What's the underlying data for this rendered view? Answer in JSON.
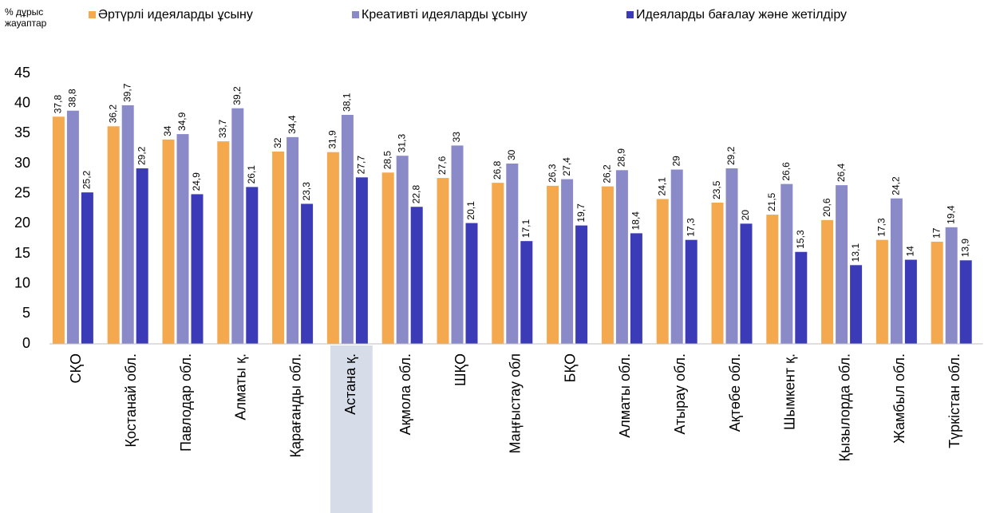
{
  "chart_data": {
    "type": "bar",
    "y_label": "% дұрыс жауаптар",
    "categories": [
      "СҚО",
      "Қостанай обл.",
      "Павлодар обл.",
      "Алматы қ.",
      "Қарағанды обл.",
      "Астана қ.",
      "Ақмола обл.",
      "ШҚО",
      "Маңғыстау обл",
      "БҚО",
      "Алматы обл.",
      "Атырау обл.",
      "Ақтөбе обл.",
      "Шымкент қ.",
      "Қызылорда обл.",
      "Жамбыл обл.",
      "Түркістан обл."
    ],
    "highlight": "Астана қ.",
    "series": [
      {
        "name": "Әртүрлі идеяларды ұсыну",
        "color": "#f5a94f",
        "values": [
          37.8,
          36.2,
          34,
          33.7,
          32,
          31.9,
          28.5,
          27.6,
          26.8,
          26.3,
          26.2,
          24.1,
          23.5,
          21.5,
          20.6,
          17.3,
          17
        ],
        "value_labels": [
          "37,8",
          "36,2",
          "34",
          "33,7",
          "32",
          "31,9",
          "28,5",
          "27,6",
          "26,8",
          "26,3",
          "26,2",
          "24,1",
          "23,5",
          "21,5",
          "20,6",
          "17,3",
          "17"
        ]
      },
      {
        "name": "Креативті идеяларды ұсыну",
        "color": "#8a8ac8",
        "values": [
          38.8,
          39.7,
          34.9,
          39.2,
          34.4,
          38.1,
          31.3,
          33,
          30,
          27.4,
          28.9,
          29,
          29.2,
          26.6,
          26.4,
          24.2,
          19.4
        ],
        "value_labels": [
          "38,8",
          "39,7",
          "34,9",
          "39,2",
          "34,4",
          "38,1",
          "31,3",
          "33",
          "30",
          "27,4",
          "28,9",
          "29",
          "29,2",
          "26,6",
          "26,4",
          "24,2",
          "19,4"
        ]
      },
      {
        "name": "Идеяларды бағалау және жетілдіру",
        "color": "#3b3bb8",
        "values": [
          25.2,
          29.2,
          24.9,
          26.1,
          23.3,
          27.7,
          22.8,
          20.1,
          17.1,
          19.7,
          18.4,
          17.3,
          20,
          15.3,
          13.1,
          14,
          13.9
        ],
        "value_labels": [
          "25,2",
          "29,2",
          "24,9",
          "26,1",
          "23,3",
          "27,7",
          "22,8",
          "20,1",
          "17,1",
          "19,7",
          "18,4",
          "17,3",
          "20",
          "15,3",
          "13,1",
          "14",
          "13,9"
        ]
      }
    ],
    "ylim": [
      0,
      45
    ],
    "yticks": [
      0,
      5,
      10,
      15,
      20,
      25,
      30,
      35,
      40,
      45
    ]
  }
}
